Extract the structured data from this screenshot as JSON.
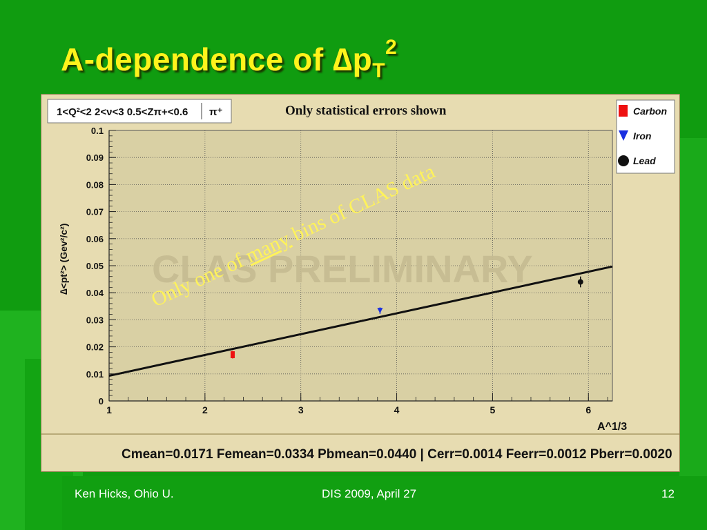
{
  "slide": {
    "title_prefix": "A-dependence of ",
    "title_delta": "∆",
    "title_p": "p",
    "title_sub": "T",
    "title_sup": "2"
  },
  "chart": {
    "cuts_label": "1<Q²<2 2<ν<3 0.5<Zπ+<0.6",
    "cuts_particle": "π⁺",
    "note": "Only statistical errors shown",
    "watermark": "CLAS PRELIMINARY",
    "overlay_prefix": "Only one of ",
    "overlay_underlined": "many",
    "overlay_suffix": " bins of CLAS data",
    "ylabel": "∆<pt²> (Gev²/c²)",
    "xlabel": "A^1/3",
    "stats_text": "Cmean=0.0171 Femean=0.0334 Pbmean=0.0440 | Cerr=0.0014 Feerr=0.0012 Pberr=0.0020",
    "legend": [
      {
        "label": "Carbon",
        "marker": "square",
        "color": "#ee1111"
      },
      {
        "label": "Iron",
        "marker": "triangle-down",
        "color": "#1a2fe0"
      },
      {
        "label": "Lead",
        "marker": "circle",
        "color": "#111111"
      }
    ]
  },
  "chart_data": {
    "type": "scatter",
    "xlabel": "A^1/3",
    "ylabel": "∆<pt²> (Gev²/c²)",
    "xlim": [
      1,
      6.25
    ],
    "ylim": [
      0,
      0.1
    ],
    "x_ticks": [
      1,
      2,
      3,
      4,
      5,
      6
    ],
    "y_ticks": [
      0,
      0.01,
      0.02,
      0.03,
      0.04,
      0.05,
      0.06,
      0.07,
      0.08,
      0.09,
      0.1
    ],
    "series": [
      {
        "name": "Carbon",
        "x": [
          2.289
        ],
        "y": [
          0.0171
        ],
        "err": [
          0.0014
        ],
        "color": "#ee1111",
        "marker": "square"
      },
      {
        "name": "Iron",
        "x": [
          3.826
        ],
        "y": [
          0.0334
        ],
        "err": [
          0.0012
        ],
        "color": "#1a2fe0",
        "marker": "triangle-down"
      },
      {
        "name": "Lead",
        "x": [
          5.917
        ],
        "y": [
          0.044
        ],
        "err": [
          0.002
        ],
        "color": "#111111",
        "marker": "circle"
      }
    ],
    "fit_line": {
      "x": [
        1,
        6.25
      ],
      "y": [
        0.0093,
        0.0497
      ]
    },
    "grid": true,
    "legend_position": "top-right"
  },
  "footer": {
    "left": "Ken Hicks, Ohio U.",
    "center": "DIS 2009, April 27",
    "right": "12"
  }
}
